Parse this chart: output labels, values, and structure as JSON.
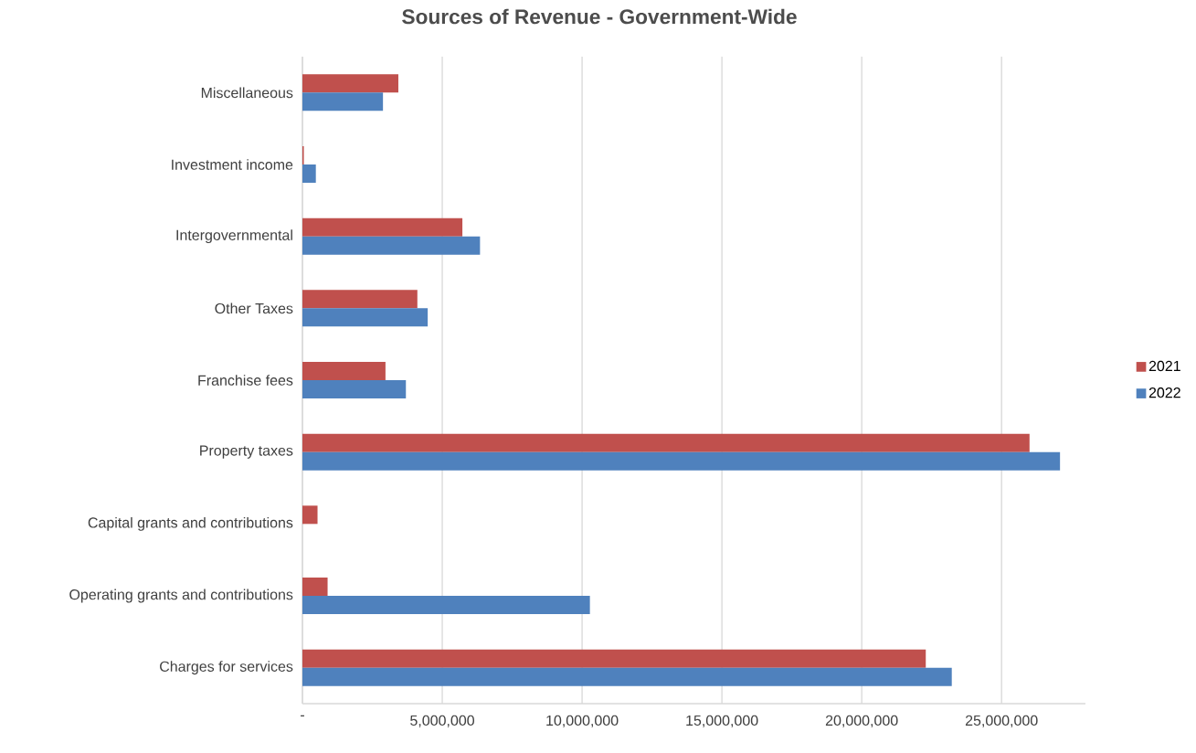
{
  "chart_data": {
    "type": "bar",
    "orientation": "horizontal",
    "title": "Sources of Revenue - Government-Wide",
    "categories": [
      "Miscellaneous",
      "Investment income",
      "Intergovernmental",
      "Other Taxes",
      "Franchise fees",
      "Property taxes",
      "Capital grants and contributions",
      "Operating grants and contributions",
      "Charges for services"
    ],
    "series": [
      {
        "name": "2021",
        "color": "#c0504d",
        "values": [
          3430000,
          50000,
          5720000,
          4110000,
          2970000,
          26000000,
          540000,
          900000,
          22290000
        ]
      },
      {
        "name": "2022",
        "color": "#4f81bd",
        "values": [
          2880000,
          480000,
          6350000,
          4480000,
          3700000,
          27090000,
          0,
          10280000,
          23220000
        ]
      }
    ],
    "xlim": [
      0,
      28000000
    ],
    "xticks": [
      {
        "value": 0,
        "label": "-"
      },
      {
        "value": 5000000,
        "label": "5,000,000"
      },
      {
        "value": 10000000,
        "label": "10,000,000"
      },
      {
        "value": 15000000,
        "label": "15,000,000"
      },
      {
        "value": 20000000,
        "label": "20,000,000"
      },
      {
        "value": 25000000,
        "label": "25,000,000"
      }
    ],
    "grid": "x",
    "legend": "right"
  }
}
